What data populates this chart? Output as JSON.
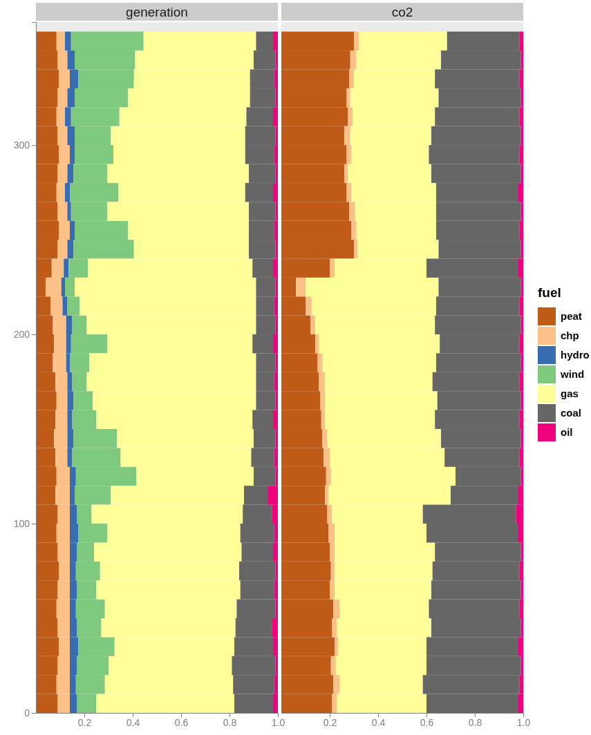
{
  "chart_data": [
    {
      "type": "bar",
      "title": "generation",
      "orientation": "horizontal",
      "stacked": true,
      "x": [
        5,
        15,
        25,
        35,
        45,
        55,
        65,
        75,
        85,
        95,
        105,
        115,
        125,
        135,
        145,
        155,
        165,
        175,
        185,
        195,
        205,
        215,
        225,
        235,
        245,
        255,
        265,
        275,
        285,
        295,
        305,
        315,
        325,
        335,
        345,
        355
      ],
      "xlim": [
        0,
        1
      ],
      "xticks": [
        0.2,
        0.4,
        0.6,
        0.8,
        {
          "value": 1,
          "label": "1.0"
        }
      ],
      "ylim": [
        0,
        365
      ],
      "yticks": [
        0,
        100,
        200,
        300
      ],
      "series": [
        {
          "color": "#bf5b17",
          "values": [
            0.09,
            0.085,
            0.09,
            0.095,
            0.09,
            0.085,
            0.09,
            0.095,
            0.09,
            0.085,
            0.09,
            0.08,
            0.085,
            0.08,
            0.075,
            0.08,
            0.085,
            0.08,
            0.07,
            0.075,
            0.07,
            0.06,
            0.04,
            0.065,
            0.09,
            0.095,
            0.09,
            0.085,
            0.09,
            0.095,
            0.09,
            0.085,
            0.09,
            0.095,
            0.09,
            0.085
          ]
        },
        {
          "color": "#fdc086",
          "values": [
            0.05,
            0.055,
            0.05,
            0.045,
            0.05,
            0.055,
            0.05,
            0.045,
            0.05,
            0.055,
            0.05,
            0.06,
            0.055,
            0.05,
            0.055,
            0.05,
            0.045,
            0.05,
            0.055,
            0.05,
            0.055,
            0.05,
            0.065,
            0.05,
            0.04,
            0.045,
            0.04,
            0.035,
            0.04,
            0.045,
            0.04,
            0.035,
            0.04,
            0.045,
            0.04,
            0.035
          ]
        },
        {
          "color": "#386cb0",
          "values": [
            0.03,
            0.025,
            0.03,
            0.035,
            0.03,
            0.025,
            0.03,
            0.025,
            0.03,
            0.035,
            0.03,
            0.02,
            0.025,
            0.02,
            0.025,
            0.02,
            0.025,
            0.02,
            0.015,
            0.02,
            0.025,
            0.02,
            0.015,
            0.02,
            0.025,
            0.02,
            0.015,
            0.02,
            0.025,
            0.02,
            0.03,
            0.025,
            0.03,
            0.035,
            0.03,
            0.025
          ]
        },
        {
          "color": "#7fc97f",
          "values": [
            0.08,
            0.12,
            0.13,
            0.15,
            0.1,
            0.12,
            0.08,
            0.1,
            0.07,
            0.12,
            0.06,
            0.15,
            0.25,
            0.2,
            0.18,
            0.1,
            0.08,
            0.06,
            0.08,
            0.15,
            0.06,
            0.05,
            0.04,
            0.08,
            0.25,
            0.22,
            0.15,
            0.2,
            0.14,
            0.16,
            0.15,
            0.2,
            0.22,
            0.23,
            0.25,
            0.3
          ]
        },
        {
          "color": "#ffff99",
          "values": [
            0.57,
            0.53,
            0.51,
            0.495,
            0.555,
            0.545,
            0.595,
            0.575,
            0.61,
            0.55,
            0.625,
            0.55,
            0.485,
            0.54,
            0.565,
            0.645,
            0.675,
            0.7,
            0.69,
            0.6,
            0.7,
            0.73,
            0.75,
            0.68,
            0.475,
            0.5,
            0.585,
            0.525,
            0.585,
            0.545,
            0.555,
            0.525,
            0.505,
            0.48,
            0.49,
            0.465
          ]
        },
        {
          "color": "#666666",
          "values": [
            0.16,
            0.17,
            0.18,
            0.16,
            0.15,
            0.16,
            0.14,
            0.15,
            0.13,
            0.14,
            0.12,
            0.1,
            0.09,
            0.095,
            0.09,
            0.085,
            0.08,
            0.075,
            0.08,
            0.085,
            0.08,
            0.075,
            0.08,
            0.085,
            0.11,
            0.105,
            0.11,
            0.115,
            0.11,
            0.12,
            0.125,
            0.11,
            0.105,
            0.1,
            0.09,
            0.07
          ]
        },
        {
          "color": "#f0027f",
          "values": [
            0.02,
            0.015,
            0.01,
            0.02,
            0.025,
            0.01,
            0.015,
            0.01,
            0.02,
            0.015,
            0.025,
            0.04,
            0.01,
            0.015,
            0.01,
            0.02,
            0.01,
            0.015,
            0.01,
            0.02,
            0.01,
            0.015,
            0.01,
            0.02,
            0.01,
            0.015,
            0.01,
            0.02,
            0.01,
            0.015,
            0.01,
            0.02,
            0.01,
            0.015,
            0.01,
            0.02
          ]
        }
      ]
    },
    {
      "type": "bar",
      "title": "co2",
      "orientation": "horizontal",
      "stacked": true,
      "legend": "right",
      "legend_title": "fuel",
      "tick_labels": "x",
      "x": [
        5,
        15,
        25,
        35,
        45,
        55,
        65,
        75,
        85,
        95,
        105,
        115,
        125,
        135,
        145,
        155,
        165,
        175,
        185,
        195,
        205,
        215,
        225,
        235,
        245,
        255,
        265,
        275,
        285,
        295,
        305,
        315,
        325,
        335,
        345,
        355
      ],
      "xlim": [
        0,
        1
      ],
      "xticks": [
        0.2,
        0.4,
        0.6,
        0.8,
        {
          "value": 1,
          "label": "1.0"
        }
      ],
      "ylim": [
        0,
        365
      ],
      "yticks": [
        0,
        100,
        200,
        300
      ],
      "series": [
        {
          "name": "peat",
          "color": "#bf5b17",
          "values": [
            0.21,
            0.215,
            0.205,
            0.22,
            0.21,
            0.215,
            0.2,
            0.205,
            0.2,
            0.195,
            0.19,
            0.18,
            0.185,
            0.175,
            0.17,
            0.165,
            0.16,
            0.155,
            0.15,
            0.14,
            0.12,
            0.1,
            0.06,
            0.2,
            0.3,
            0.29,
            0.28,
            0.27,
            0.26,
            0.27,
            0.26,
            0.275,
            0.27,
            0.28,
            0.285,
            0.3
          ]
        },
        {
          "name": "chp",
          "color": "#fdc086",
          "values": [
            0.02,
            0.025,
            0.02,
            0.015,
            0.02,
            0.025,
            0.02,
            0.015,
            0.02,
            0.025,
            0.02,
            0.015,
            0.02,
            0.025,
            0.02,
            0.015,
            0.02,
            0.025,
            0.02,
            0.015,
            0.02,
            0.025,
            0.04,
            0.02,
            0.015,
            0.02,
            0.025,
            0.02,
            0.015,
            0.02,
            0.025,
            0.02,
            0.015,
            0.02,
            0.025,
            0.02
          ]
        },
        {
          "name": "hydro",
          "color": "#386cb0",
          "values": [
            0,
            0,
            0,
            0,
            0,
            0,
            0,
            0,
            0,
            0,
            0,
            0,
            0,
            0,
            0,
            0,
            0,
            0,
            0,
            0,
            0,
            0,
            0,
            0,
            0,
            0,
            0,
            0,
            0,
            0,
            0,
            0,
            0,
            0,
            0,
            0
          ]
        },
        {
          "name": "wind",
          "color": "#7fc97f",
          "values": [
            0,
            0,
            0,
            0,
            0,
            0,
            0,
            0,
            0,
            0,
            0,
            0,
            0,
            0,
            0,
            0,
            0,
            0,
            0,
            0,
            0,
            0,
            0,
            0,
            0,
            0,
            0,
            0,
            0,
            0,
            0,
            0,
            0,
            0,
            0,
            0
          ]
        },
        {
          "name": "gas",
          "color": "#ffff99",
          "values": [
            0.37,
            0.345,
            0.375,
            0.365,
            0.39,
            0.37,
            0.4,
            0.405,
            0.415,
            0.38,
            0.375,
            0.505,
            0.515,
            0.475,
            0.47,
            0.455,
            0.465,
            0.445,
            0.47,
            0.5,
            0.495,
            0.515,
            0.55,
            0.38,
            0.335,
            0.33,
            0.335,
            0.35,
            0.345,
            0.32,
            0.335,
            0.34,
            0.365,
            0.335,
            0.35,
            0.365
          ]
        },
        {
          "name": "coal",
          "color": "#666666",
          "values": [
            0.38,
            0.4,
            0.39,
            0.38,
            0.37,
            0.375,
            0.37,
            0.36,
            0.355,
            0.38,
            0.385,
            0.28,
            0.27,
            0.31,
            0.33,
            0.35,
            0.345,
            0.36,
            0.35,
            0.33,
            0.355,
            0.345,
            0.34,
            0.38,
            0.34,
            0.345,
            0.35,
            0.34,
            0.37,
            0.375,
            0.37,
            0.35,
            0.34,
            0.35,
            0.33,
            0.3
          ]
        },
        {
          "name": "oil",
          "color": "#f0027f",
          "values": [
            0.02,
            0.015,
            0.01,
            0.02,
            0.01,
            0.015,
            0.01,
            0.015,
            0.01,
            0.02,
            0.03,
            0.02,
            0.01,
            0.015,
            0.01,
            0.015,
            0.01,
            0.015,
            0.01,
            0.015,
            0.01,
            0.015,
            0.01,
            0.02,
            0.01,
            0.015,
            0.01,
            0.02,
            0.01,
            0.015,
            0.01,
            0.015,
            0.01,
            0.015,
            0.01,
            0.015
          ]
        }
      ]
    }
  ]
}
